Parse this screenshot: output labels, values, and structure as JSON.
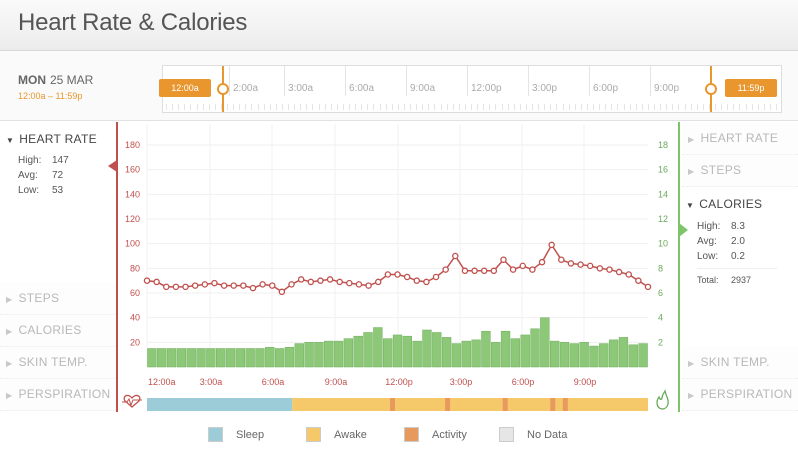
{
  "title": "Heart Rate & Calories",
  "date": {
    "day": "MON",
    "date": "25 MAR",
    "range": "12:00a – 11:59p"
  },
  "timeline": {
    "start_marker": "12:00a",
    "end_marker": "11:59p",
    "ticks": [
      "2:00a",
      "3:00a",
      "6:00a",
      "9:00a",
      "12:00p",
      "3:00p",
      "6:00p",
      "9:00p"
    ]
  },
  "left_panel": {
    "heart_rate": {
      "title": "HEART RATE",
      "high_label": "High:",
      "high": "147",
      "avg_label": "Avg:",
      "avg": "72",
      "low_label": "Low:",
      "low": "53"
    },
    "collapsed": [
      "STEPS",
      "CALORIES",
      "SKIN TEMP.",
      "PERSPIRATION"
    ]
  },
  "right_panel": {
    "collapsed_top": [
      "HEART RATE",
      "STEPS"
    ],
    "calories": {
      "title": "CALORIES",
      "high_label": "High:",
      "high": "8.3",
      "avg_label": "Avg:",
      "avg": "2.0",
      "low_label": "Low:",
      "low": "0.2",
      "total_label": "Total:",
      "total": "2937"
    },
    "collapsed_bottom": [
      "SKIN TEMP.",
      "PERSPIRATION"
    ]
  },
  "legend": [
    {
      "label": "Sleep",
      "color": "#9cccd8"
    },
    {
      "label": "Awake",
      "color": "#f5c86a"
    },
    {
      "label": "Activity",
      "color": "#e89a5e"
    },
    {
      "label": "No Data",
      "color": "#e6e6e6"
    }
  ],
  "colors": {
    "heart": "#c0504d",
    "calories": "#7ec46a",
    "accent": "#e8962d"
  },
  "icons": {
    "left_axis": "heart-icon",
    "right_axis": "flame-icon"
  },
  "chart_data": {
    "type": "line+bar",
    "x_labels": [
      "12:00a",
      "3:00a",
      "6:00a",
      "9:00a",
      "12:00p",
      "3:00p",
      "6:00p",
      "9:00p"
    ],
    "left_axis": {
      "ticks": [
        20,
        40,
        60,
        80,
        100,
        120,
        140,
        160,
        180
      ],
      "ylim": [
        0,
        200
      ]
    },
    "right_axis": {
      "ticks": [
        2,
        4,
        6,
        8,
        10,
        12,
        14,
        16,
        18
      ],
      "ylim": [
        0,
        20
      ]
    },
    "heart_rate": [
      70,
      69,
      65,
      65,
      65,
      66,
      67,
      68,
      66,
      66,
      66,
      64,
      67,
      66,
      61,
      67,
      71,
      69,
      70,
      71,
      69,
      68,
      67,
      66,
      69,
      75,
      75,
      73,
      70,
      69,
      73,
      79,
      90,
      78,
      78,
      78,
      78,
      87,
      79,
      82,
      79,
      85,
      99,
      87,
      84,
      83,
      82,
      80,
      79,
      77,
      75,
      70,
      65
    ],
    "calories": [
      1.5,
      1.5,
      1.5,
      1.5,
      1.5,
      1.5,
      1.5,
      1.5,
      1.5,
      1.5,
      1.5,
      1.5,
      1.6,
      1.5,
      1.6,
      1.9,
      2.0,
      2.0,
      2.1,
      2.1,
      2.3,
      2.5,
      2.8,
      3.2,
      2.3,
      2.6,
      2.5,
      2.1,
      3.0,
      2.8,
      2.4,
      1.9,
      2.1,
      2.2,
      2.9,
      2.0,
      2.9,
      2.3,
      2.6,
      3.1,
      4.0,
      2.1,
      2.0,
      1.9,
      2.0,
      1.7,
      1.9,
      2.2,
      2.4,
      1.8,
      1.9
    ]
  },
  "activity_strip": [
    {
      "state": "sleep",
      "from": 0.0,
      "to": 0.29
    },
    {
      "state": "awake",
      "from": 0.29,
      "to": 1.0
    }
  ],
  "activity_marks": [
    0.485,
    0.595,
    0.71,
    0.805,
    0.83
  ]
}
